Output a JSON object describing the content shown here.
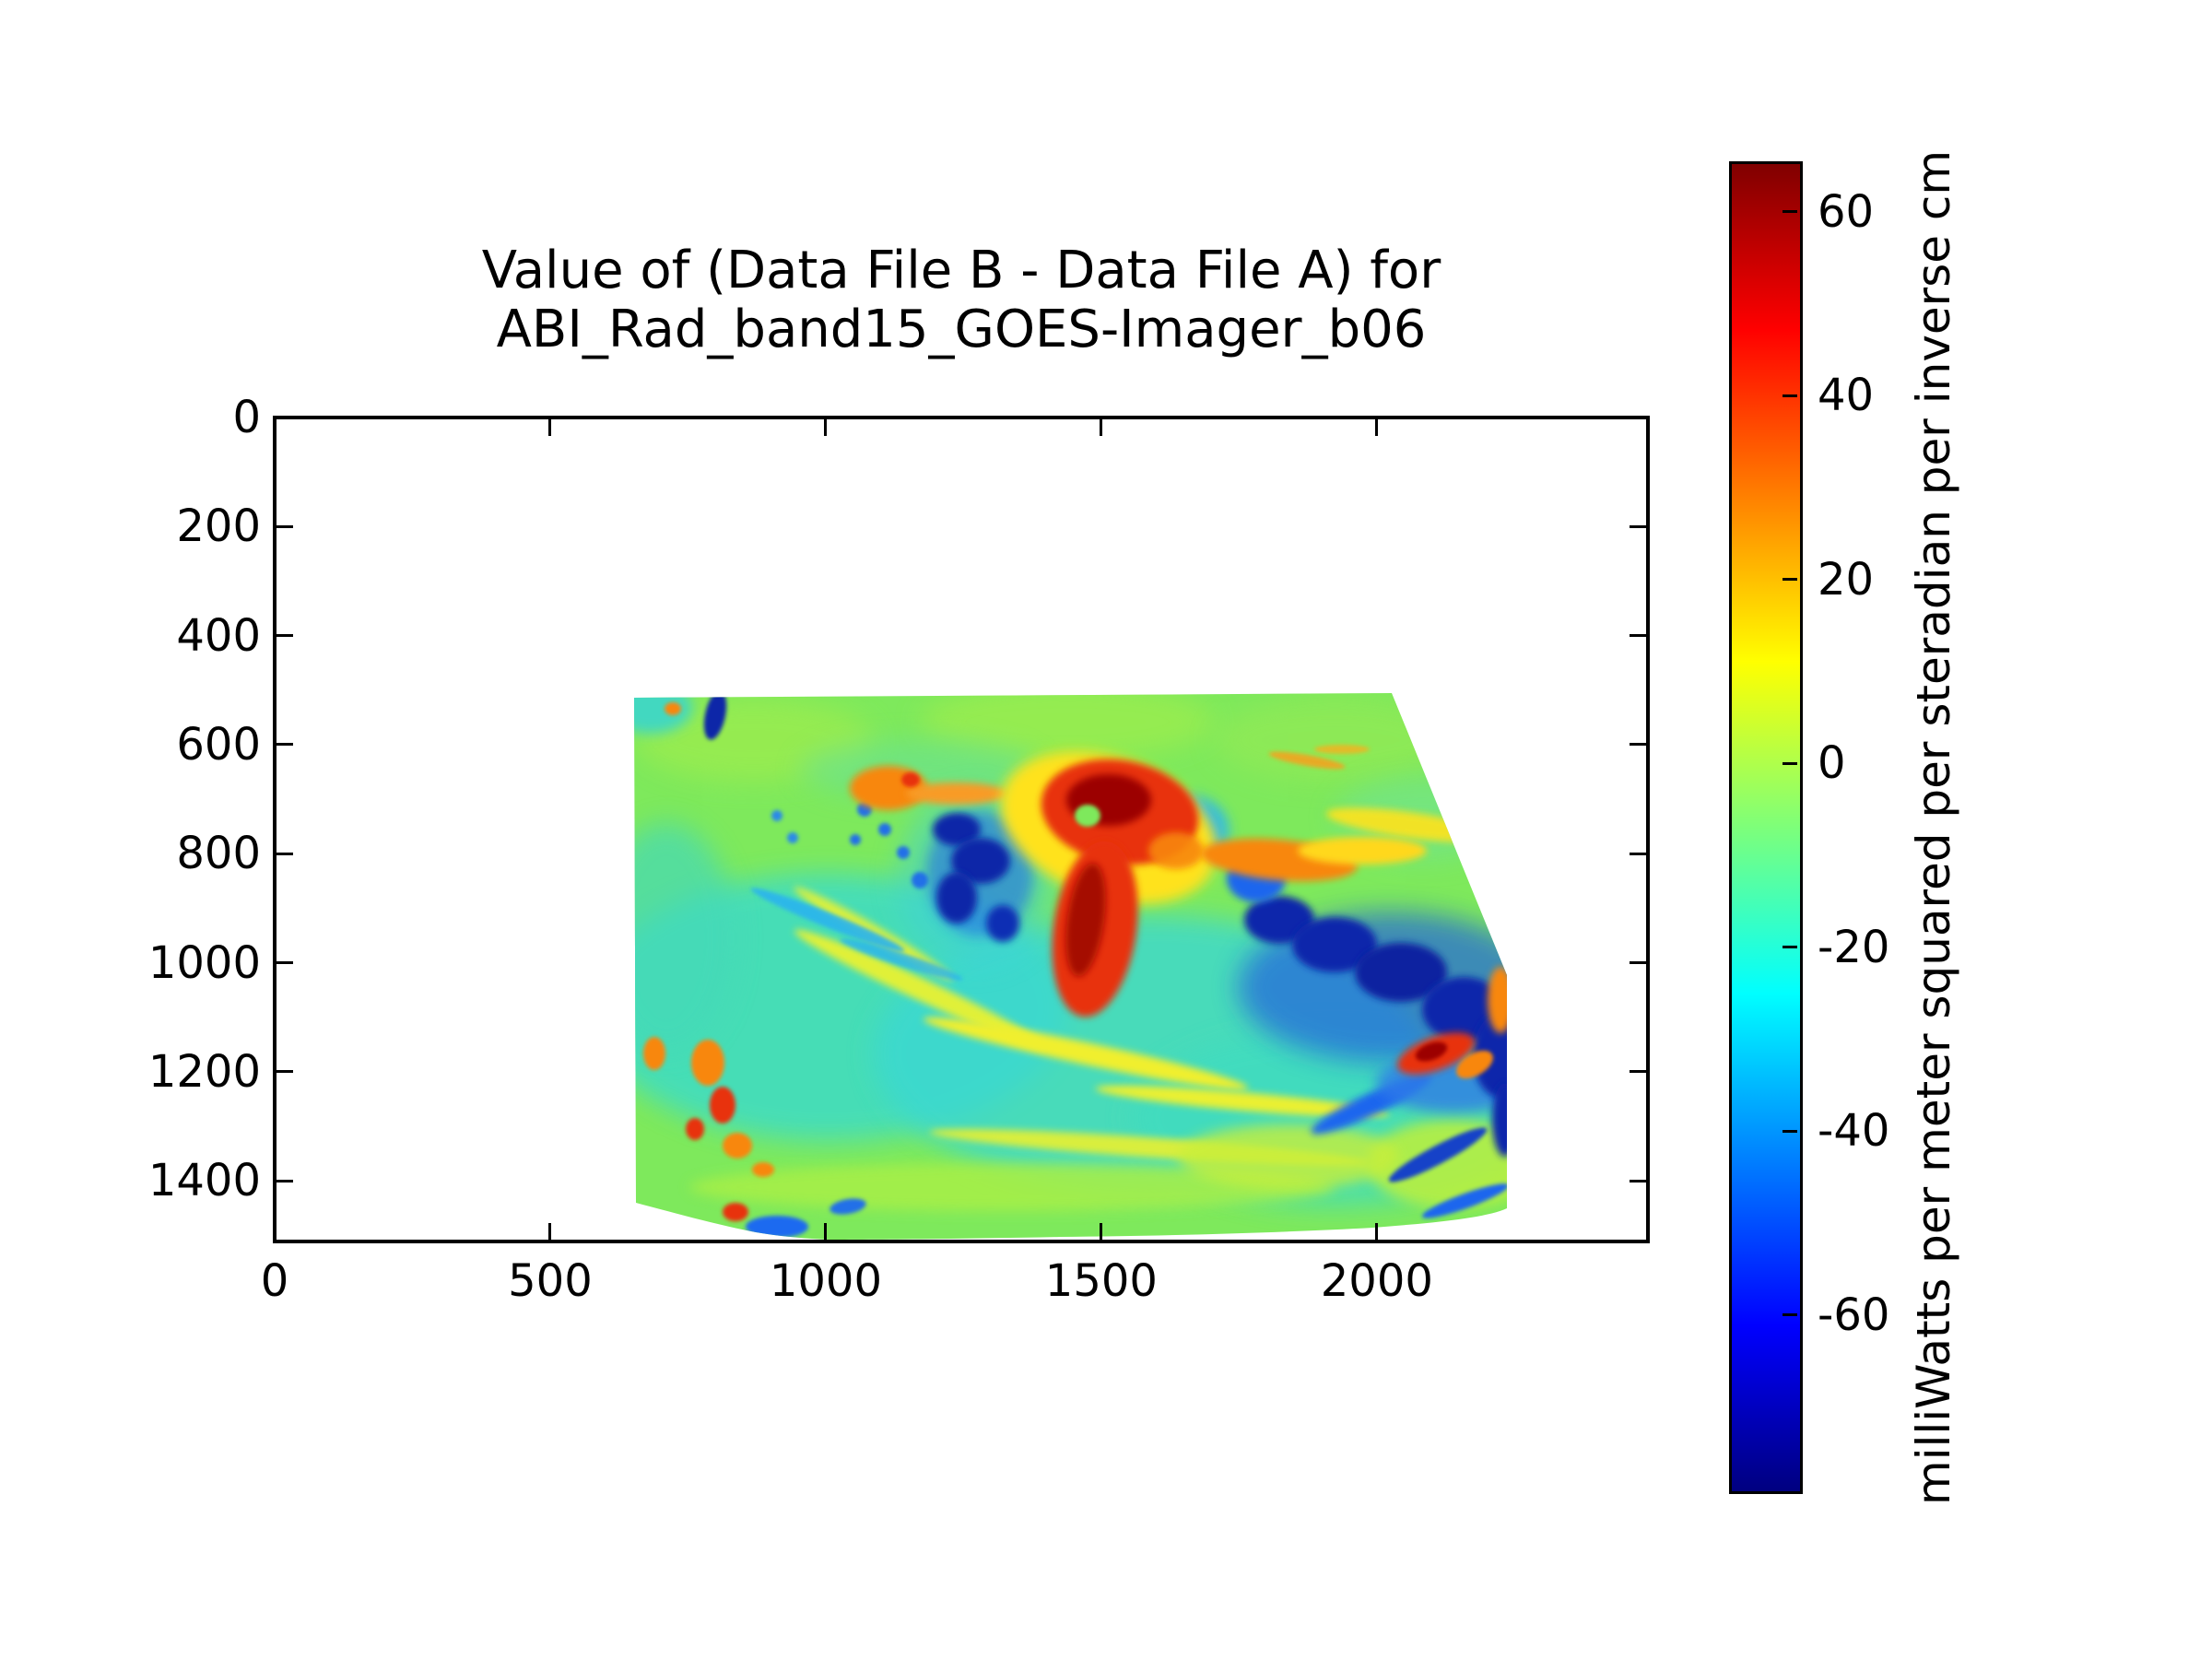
{
  "title": {
    "line1": "Value of (Data File B - Data File A) for",
    "line2": "ABI_Rad_band15_GOES-Imager_b06"
  },
  "chart_data": {
    "type": "heatmap",
    "title": "Value of (Data File B - Data File A) for ABI_Rad_band15_GOES-Imager_b06",
    "xlabel": "",
    "ylabel": "",
    "grid": false,
    "x_axis": {
      "ticks": [
        0,
        500,
        1000,
        1500,
        2000
      ],
      "lim": [
        0,
        2492
      ]
    },
    "y_axis": {
      "ticks": [
        0,
        200,
        400,
        600,
        800,
        1000,
        1200,
        1400
      ],
      "lim_top": 0,
      "lim_bottom": 1511,
      "inverted": true
    },
    "colorbar": {
      "label": "milliWatts per meter squared per steradian per inverse cm",
      "ticks": [
        60,
        40,
        20,
        0,
        -20,
        -40,
        -60
      ],
      "vmax": 65.2,
      "vmin": -79.2,
      "colormap": "jet"
    },
    "data_extent_polygon_data_coords": [
      [
        652,
        510
      ],
      [
        2027,
        505
      ],
      [
        2236,
        1022
      ],
      [
        2236,
        1452
      ],
      [
        1990,
        1488
      ],
      [
        1425,
        1502
      ],
      [
        1007,
        1507
      ],
      [
        873,
        1498
      ],
      [
        656,
        1440
      ]
    ],
    "background_value_note": "swath is mostly near zero (yellow-green), white outside data extent",
    "features": [
      {
        "sign": "positive",
        "color": "red",
        "data_x": 1510,
        "data_y": 790,
        "note": "large red anomaly with dark-red core, comma shape tapering southwest"
      },
      {
        "sign": "positive",
        "color": "orange",
        "data_x": 1115,
        "data_y": 680,
        "note": "orange patch upper-left of center"
      },
      {
        "sign": "negative",
        "color": "navy",
        "data_x": 1275,
        "data_y": 840,
        "note": "ragged navy/blue cluster left of center"
      },
      {
        "sign": "negative",
        "color": "navy",
        "data_x": 2020,
        "data_y": 1040,
        "note": "large ragged navy band toward southeast edge"
      },
      {
        "sign": "negative",
        "color": "cyan-blue",
        "data_x": 680,
        "data_y": 535,
        "note": "cyan patch with navy streak at northwest corner"
      },
      {
        "sign": "positive",
        "color": "orange",
        "data_x": 1820,
        "data_y": 810,
        "note": "orange horizontal band right of center"
      },
      {
        "sign": "positive",
        "color": "red",
        "data_x": 2110,
        "data_y": 1165,
        "note": "red streak near southeast corner"
      },
      {
        "sign": "negative",
        "color": "cyan",
        "data_x": 1500,
        "data_y": 1170,
        "note": "broad cyan region with yellow-green arcs across southern half"
      },
      {
        "sign": "positive",
        "color": "orange-red",
        "data_x": 700,
        "data_y": 1250,
        "note": "small orange/red spots along west edge, south"
      }
    ]
  }
}
